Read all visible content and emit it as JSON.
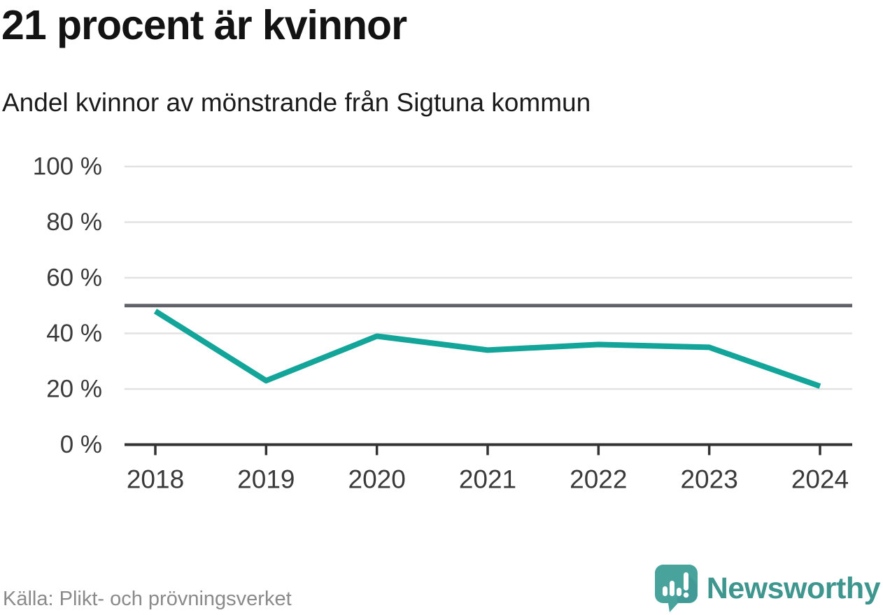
{
  "title": "21 procent är kvinnor",
  "subtitle": "Andel kvinnor av mönstrande från Sigtuna kommun",
  "source": "Källa: Plikt- och prövningsverket",
  "branding": {
    "name": "Newsworthy",
    "logo_icon": "newsworthy-speech-bubble-chart-icon"
  },
  "colors": {
    "line": "#14a59a",
    "reference_line": "#62626b",
    "gridline": "#e2e2e2",
    "axis": "#333333",
    "axis_label": "#3a3a3a",
    "title_text": "#131313",
    "source_text": "#8a8a8a",
    "brand_teal": "#3e968f",
    "logo_fill": "#48a39d"
  },
  "chart_data": {
    "type": "line",
    "title": "21 procent är kvinnor",
    "subtitle": "Andel kvinnor av mönstrande från Sigtuna kommun",
    "x": [
      "2018",
      "2019",
      "2020",
      "2021",
      "2022",
      "2023",
      "2024"
    ],
    "series": [
      {
        "name": "Andel kvinnor av mönstrande",
        "values": [
          48,
          23,
          39,
          34,
          36,
          35,
          21
        ]
      }
    ],
    "unit": "%",
    "ylim": [
      0,
      100
    ],
    "yticks": [
      0,
      20,
      40,
      60,
      80,
      100
    ],
    "ytick_suffix": " %",
    "reference_line": 50,
    "grid": true,
    "legend": false,
    "xlabel": "",
    "ylabel": ""
  }
}
